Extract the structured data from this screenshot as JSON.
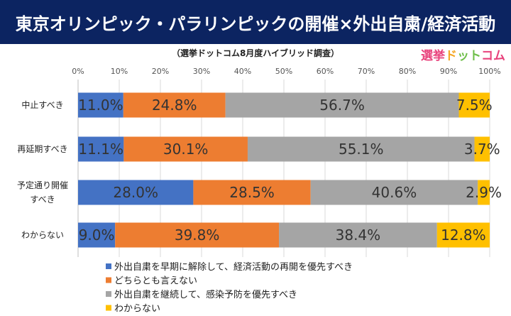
{
  "header": {
    "title": "東京オリンピック・パラリンピックの開催×外出自粛/経済活動"
  },
  "logo": {
    "text": "選挙ドットコム"
  },
  "chart_data": {
    "type": "bar",
    "orientation": "horizontal-stacked-100",
    "title": "東京オリンピック・パラリンピックの開催×外出自粛/経済活動",
    "subtitle": "（選挙ドットコム8月度ハイブリッド調査）",
    "xlim": [
      0,
      100
    ],
    "xticks": [
      "0%",
      "10%",
      "20%",
      "30%",
      "40%",
      "50%",
      "60%",
      "70%",
      "80%",
      "90%",
      "100%"
    ],
    "categories": [
      [
        "中止すべき"
      ],
      [
        "再延期すべき"
      ],
      [
        "予定通り開催",
        "すべき"
      ],
      [
        "わからない"
      ]
    ],
    "series": [
      {
        "name": "外出自粛を早期に解除して、経済活動の再開を優先すべき",
        "color": "#4472c4",
        "values": [
          11.0,
          11.1,
          28.0,
          9.0
        ],
        "labels": [
          "11.0%",
          "11.1%",
          "28.0%",
          "9.0%"
        ]
      },
      {
        "name": "どちらとも言えない",
        "color": "#ed7d31",
        "values": [
          24.8,
          30.1,
          28.5,
          39.8
        ],
        "labels": [
          "24.8%",
          "30.1%",
          "28.5%",
          "39.8%"
        ]
      },
      {
        "name": "外出自粛を継続して、感染予防を優先すべき",
        "color": "#a5a5a5",
        "values": [
          56.7,
          55.1,
          40.6,
          38.4
        ],
        "labels": [
          "56.7%",
          "55.1%",
          "40.6%",
          "38.4%"
        ]
      },
      {
        "name": "わからない",
        "color": "#ffc000",
        "values": [
          7.5,
          3.7,
          2.9,
          12.8
        ],
        "labels": [
          "7.5%",
          "3.7%",
          "2.9%",
          "12.8%"
        ]
      }
    ],
    "legend": "bottom-left",
    "grid": true
  }
}
